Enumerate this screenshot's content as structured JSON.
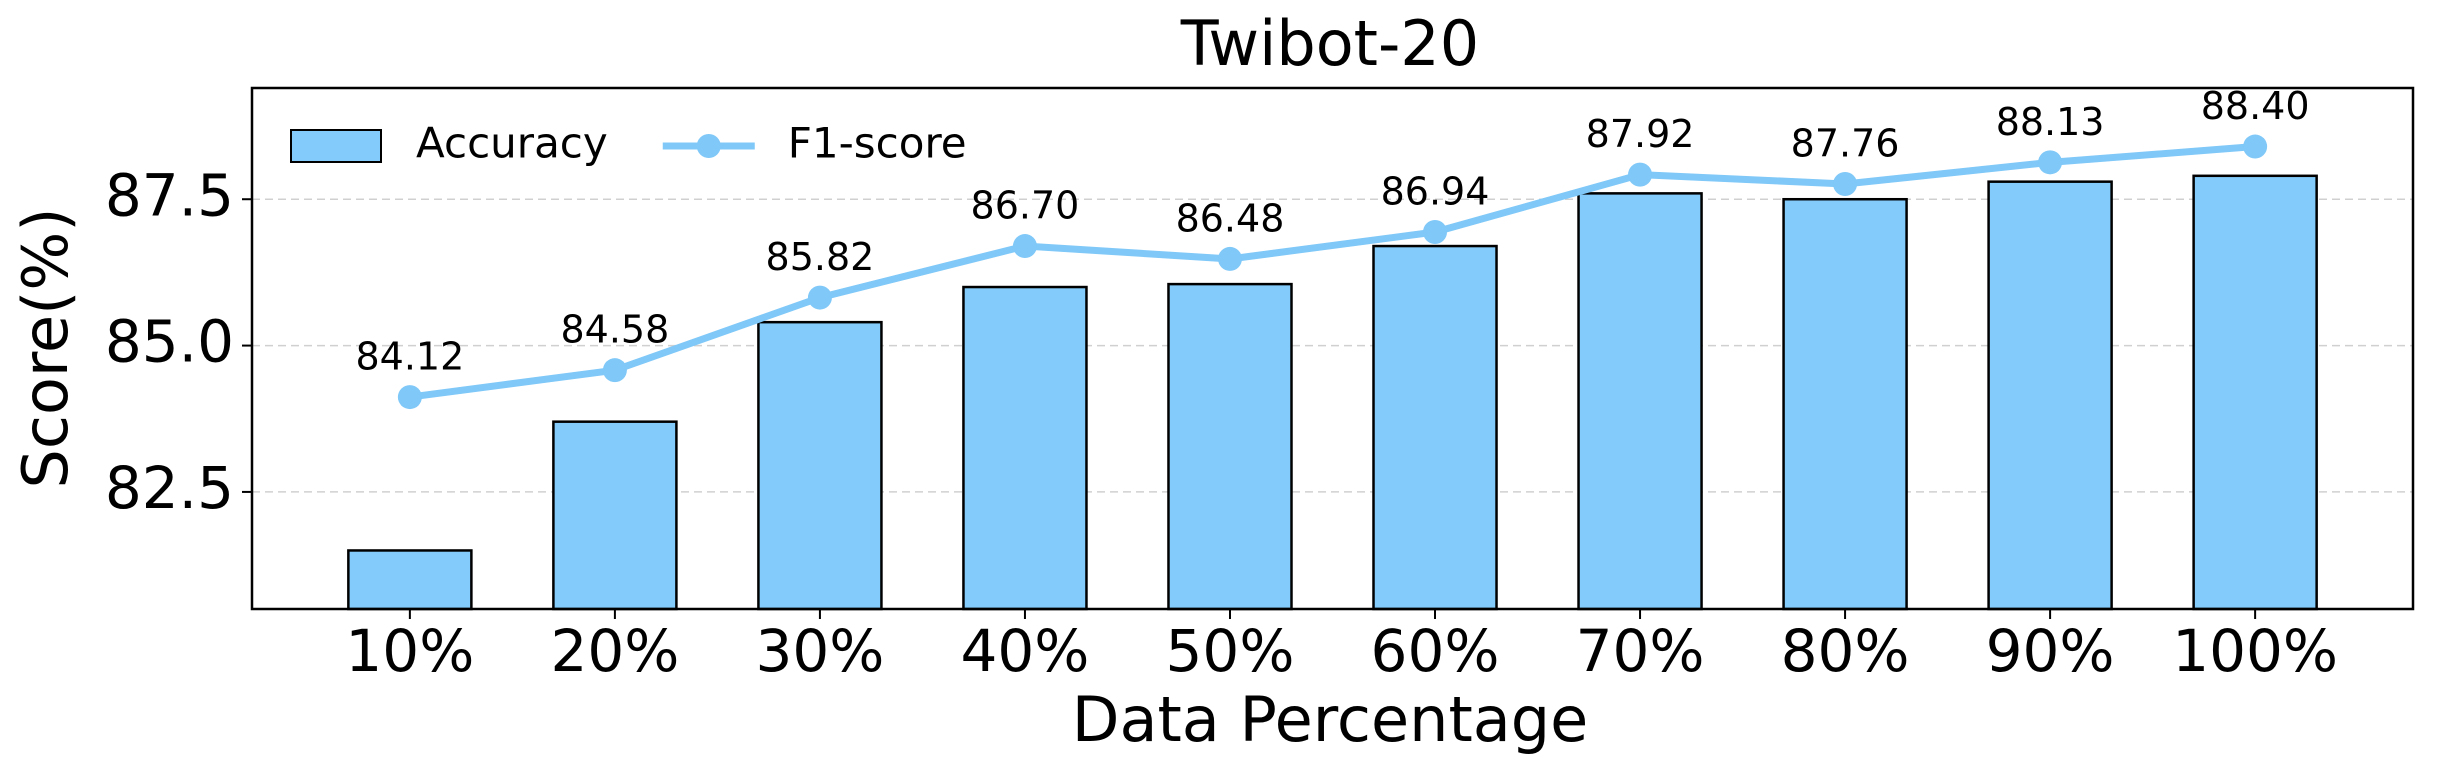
{
  "chart_data": {
    "type": "bar_line",
    "title": "Twibot-20",
    "x_label": "Data Percentage",
    "y_label": "Score(%)",
    "categories": [
      "10%",
      "20%",
      "30%",
      "40%",
      "50%",
      "60%",
      "70%",
      "80%",
      "90%",
      "100%"
    ],
    "series": [
      {
        "name": "Accuracy",
        "type": "bar",
        "color": "#82cbfa",
        "edgecolor": "#000000",
        "values": [
          81.5,
          83.7,
          85.4,
          86.0,
          86.05,
          86.7,
          87.6,
          87.5,
          87.8,
          87.9
        ]
      },
      {
        "name": "F1-score",
        "type": "line",
        "color": "#7fc8f8",
        "values": [
          84.12,
          84.58,
          85.82,
          86.7,
          86.48,
          86.94,
          87.92,
          87.76,
          88.13,
          88.4
        ],
        "value_labels": [
          "84.12",
          "84.58",
          "85.82",
          "86.70",
          "86.48",
          "86.94",
          "87.92",
          "87.76",
          "88.13",
          "88.40"
        ]
      }
    ],
    "ylim": [
      80.5,
      89.4
    ],
    "yticks": [
      82.5,
      {
        "value": 85,
        "label": "85.0"
      },
      87.5
    ],
    "grid": true,
    "legend": "upper left"
  }
}
